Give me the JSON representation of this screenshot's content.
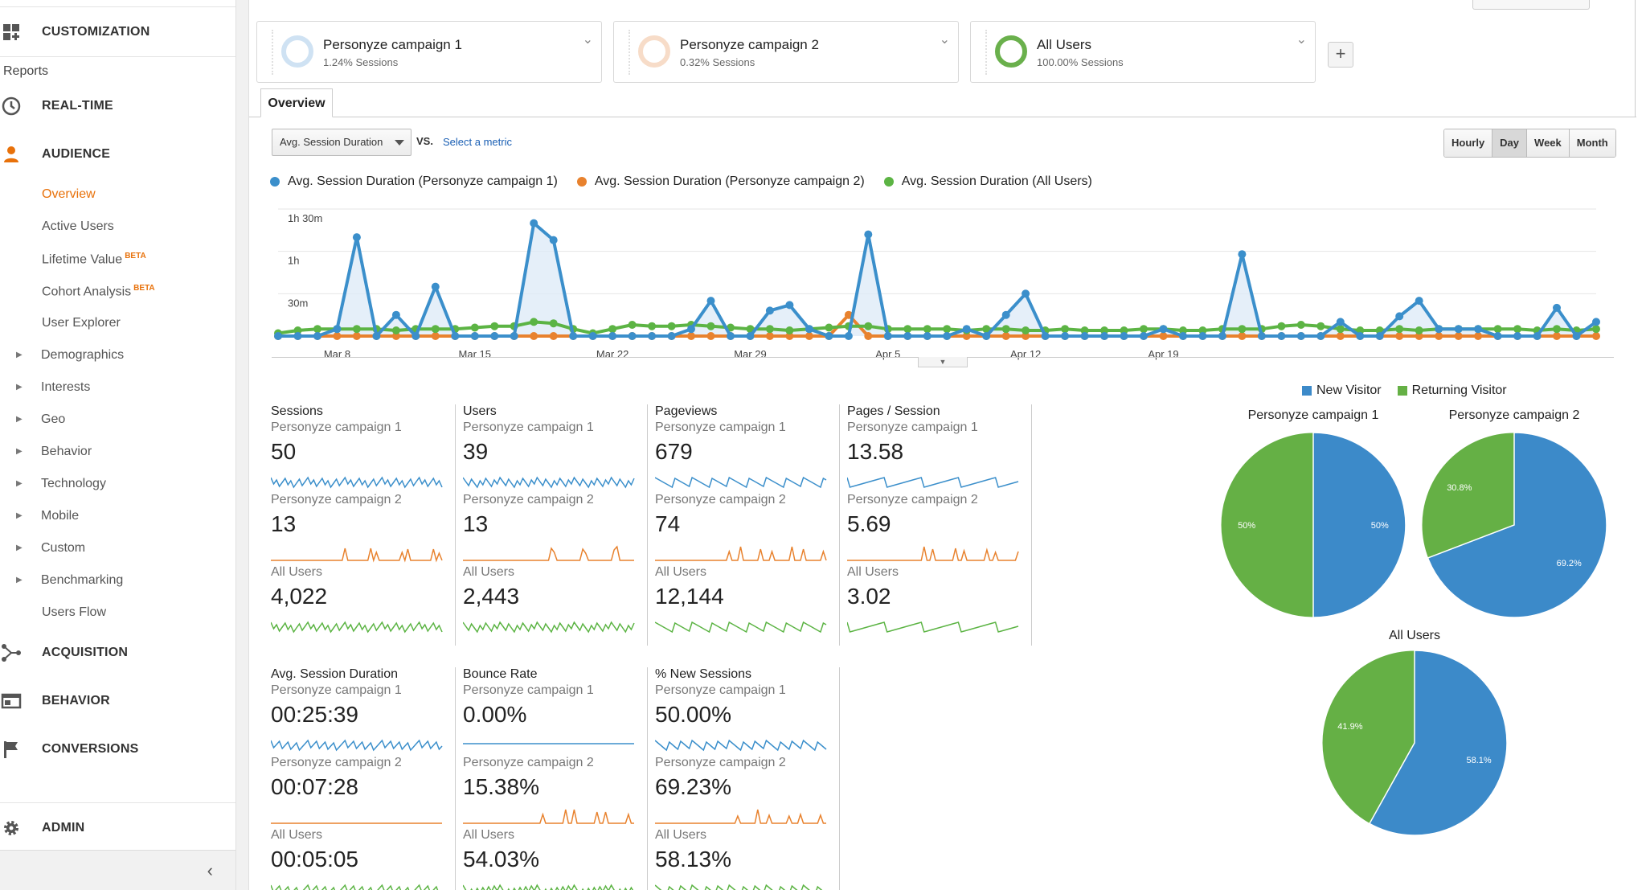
{
  "sidebar": {
    "customization": "CUSTOMIZATION",
    "reports_label": "Reports",
    "realtime": "REAL-TIME",
    "audience": "AUDIENCE",
    "audience_items": [
      {
        "label": "Overview",
        "active": true
      },
      {
        "label": "Active Users"
      },
      {
        "label": "Lifetime Value",
        "badge": "BETA"
      },
      {
        "label": "Cohort Analysis",
        "badge": "BETA"
      },
      {
        "label": "User Explorer"
      }
    ],
    "expandables": [
      "Demographics",
      "Interests",
      "Geo",
      "Behavior",
      "Technology",
      "Mobile",
      "Custom",
      "Benchmarking"
    ],
    "users_flow": "Users Flow",
    "acquisition": "ACQUISITION",
    "behavior": "BEHAVIOR",
    "conversions": "CONVERSIONS",
    "admin": "ADMIN"
  },
  "segments": [
    {
      "name": "Personyze campaign 1",
      "pct": "1.24% Sessions",
      "color": "#bcd8ee"
    },
    {
      "name": "Personyze campaign 2",
      "pct": "0.32% Sessions",
      "color": "#f5d6c0"
    },
    {
      "name": "All Users",
      "pct": "100.00% Sessions",
      "color": "#6ab04c"
    }
  ],
  "tabs": {
    "overview": "Overview"
  },
  "controls": {
    "metric": "Avg. Session Duration",
    "vs": "VS.",
    "select_metric": "Select a metric",
    "granularity": [
      "Hourly",
      "Day",
      "Week",
      "Month"
    ],
    "granularity_selected": "Day"
  },
  "colors": {
    "blue": "#3b8fcb",
    "orange": "#e8822e",
    "green": "#5cb444",
    "pie_blue": "#3c8ac9",
    "pie_green": "#65b045"
  },
  "chart_data": {
    "type": "line",
    "legend": [
      "Avg. Session Duration (Personyze campaign 1)",
      "Avg. Session Duration (Personyze campaign 2)",
      "Avg. Session Duration (All Users)"
    ],
    "y_ticks": [
      "1h 30m",
      "1h",
      "30m"
    ],
    "y_tick_values": [
      90,
      60,
      30
    ],
    "ylim": [
      0,
      90
    ],
    "x_ticks": [
      "Mar 8",
      "Mar 15",
      "Mar 22",
      "Mar 29",
      "Apr 5",
      "Apr 12",
      "Apr 19"
    ],
    "x_tick_index": [
      3,
      10,
      17,
      24,
      31,
      38,
      45
    ],
    "series": [
      {
        "name": "Personyze campaign 1",
        "color": "#3b8fcb",
        "values": [
          0,
          0,
          0,
          5,
          70,
          0,
          15,
          0,
          35,
          0,
          0,
          0,
          0,
          80,
          68,
          0,
          0,
          0,
          0,
          0,
          0,
          5,
          25,
          0,
          0,
          18,
          22,
          5,
          0,
          0,
          72,
          0,
          0,
          0,
          0,
          5,
          0,
          15,
          30,
          0,
          0,
          0,
          0,
          0,
          0,
          5,
          0,
          0,
          0,
          58,
          0,
          0,
          0,
          0,
          10,
          0,
          0,
          14,
          25,
          5,
          5,
          5,
          0,
          0,
          0,
          20,
          0,
          10
        ]
      },
      {
        "name": "Personyze campaign 2",
        "color": "#e8822e",
        "values": [
          0,
          0,
          0,
          0,
          0,
          0,
          0,
          0,
          0,
          0,
          0,
          0,
          0,
          0,
          0,
          0,
          0,
          0,
          0,
          0,
          0,
          0,
          0,
          0,
          0,
          0,
          0,
          0,
          0,
          15,
          0,
          0,
          0,
          0,
          0,
          0,
          0,
          0,
          0,
          0,
          0,
          0,
          0,
          0,
          0,
          0,
          0,
          0,
          0,
          0,
          0,
          0,
          0,
          0,
          0,
          0,
          0,
          0,
          0,
          0,
          0,
          0,
          0,
          0,
          0,
          0,
          0,
          0
        ]
      },
      {
        "name": "All Users",
        "color": "#5cb444",
        "values": [
          2,
          4,
          5,
          5,
          5,
          5,
          4,
          5,
          5,
          5,
          6,
          7,
          7,
          10,
          9,
          5,
          2,
          5,
          8,
          7,
          7,
          8,
          7,
          6,
          5,
          5,
          4,
          5,
          6,
          7,
          7,
          5,
          5,
          5,
          5,
          4,
          5,
          5,
          4,
          4,
          5,
          4,
          4,
          4,
          5,
          5,
          4,
          4,
          5,
          5,
          5,
          7,
          8,
          7,
          5,
          4,
          4,
          5,
          4,
          5,
          5,
          5,
          5,
          5,
          4,
          5,
          4,
          5
        ]
      }
    ]
  },
  "metrics": [
    {
      "title": "Sessions",
      "rows": [
        [
          "Personyze campaign 1",
          "50"
        ],
        [
          "Personyze campaign 2",
          "13"
        ],
        [
          "All Users",
          "4,022"
        ]
      ]
    },
    {
      "title": "Users",
      "rows": [
        [
          "Personyze campaign 1",
          "39"
        ],
        [
          "Personyze campaign 2",
          "13"
        ],
        [
          "All Users",
          "2,443"
        ]
      ]
    },
    {
      "title": "Pageviews",
      "rows": [
        [
          "Personyze campaign 1",
          "679"
        ],
        [
          "Personyze campaign 2",
          "74"
        ],
        [
          "All Users",
          "12,144"
        ]
      ]
    },
    {
      "title": "Pages / Session",
      "rows": [
        [
          "Personyze campaign 1",
          "13.58"
        ],
        [
          "Personyze campaign 2",
          "5.69"
        ],
        [
          "All Users",
          "3.02"
        ]
      ]
    },
    {
      "title": "Avg. Session Duration",
      "rows": [
        [
          "Personyze campaign 1",
          "00:25:39"
        ],
        [
          "Personyze campaign 2",
          "00:07:28"
        ],
        [
          "All Users",
          "00:05:05"
        ]
      ]
    },
    {
      "title": "Bounce Rate",
      "rows": [
        [
          "Personyze campaign 1",
          "0.00%"
        ],
        [
          "Personyze campaign 2",
          "15.38%"
        ],
        [
          "All Users",
          "54.03%"
        ]
      ]
    },
    {
      "title": "% New Sessions",
      "rows": [
        [
          "Personyze campaign 1",
          "50.00%"
        ],
        [
          "Personyze campaign 2",
          "69.23%"
        ],
        [
          "All Users",
          "58.13%"
        ]
      ]
    }
  ],
  "pies": {
    "legend": [
      "New Visitor",
      "Returning Visitor"
    ],
    "items": [
      {
        "title": "Personyze campaign 1",
        "new_label": "50%",
        "ret_label": "50%",
        "new_pct": 50
      },
      {
        "title": "Personyze campaign 2",
        "new_label": "69.2%",
        "ret_label": "30.8%",
        "new_pct": 69.2
      },
      {
        "title": "All Users",
        "new_label": "58.1%",
        "ret_label": "41.9%",
        "new_pct": 58.1
      }
    ]
  }
}
